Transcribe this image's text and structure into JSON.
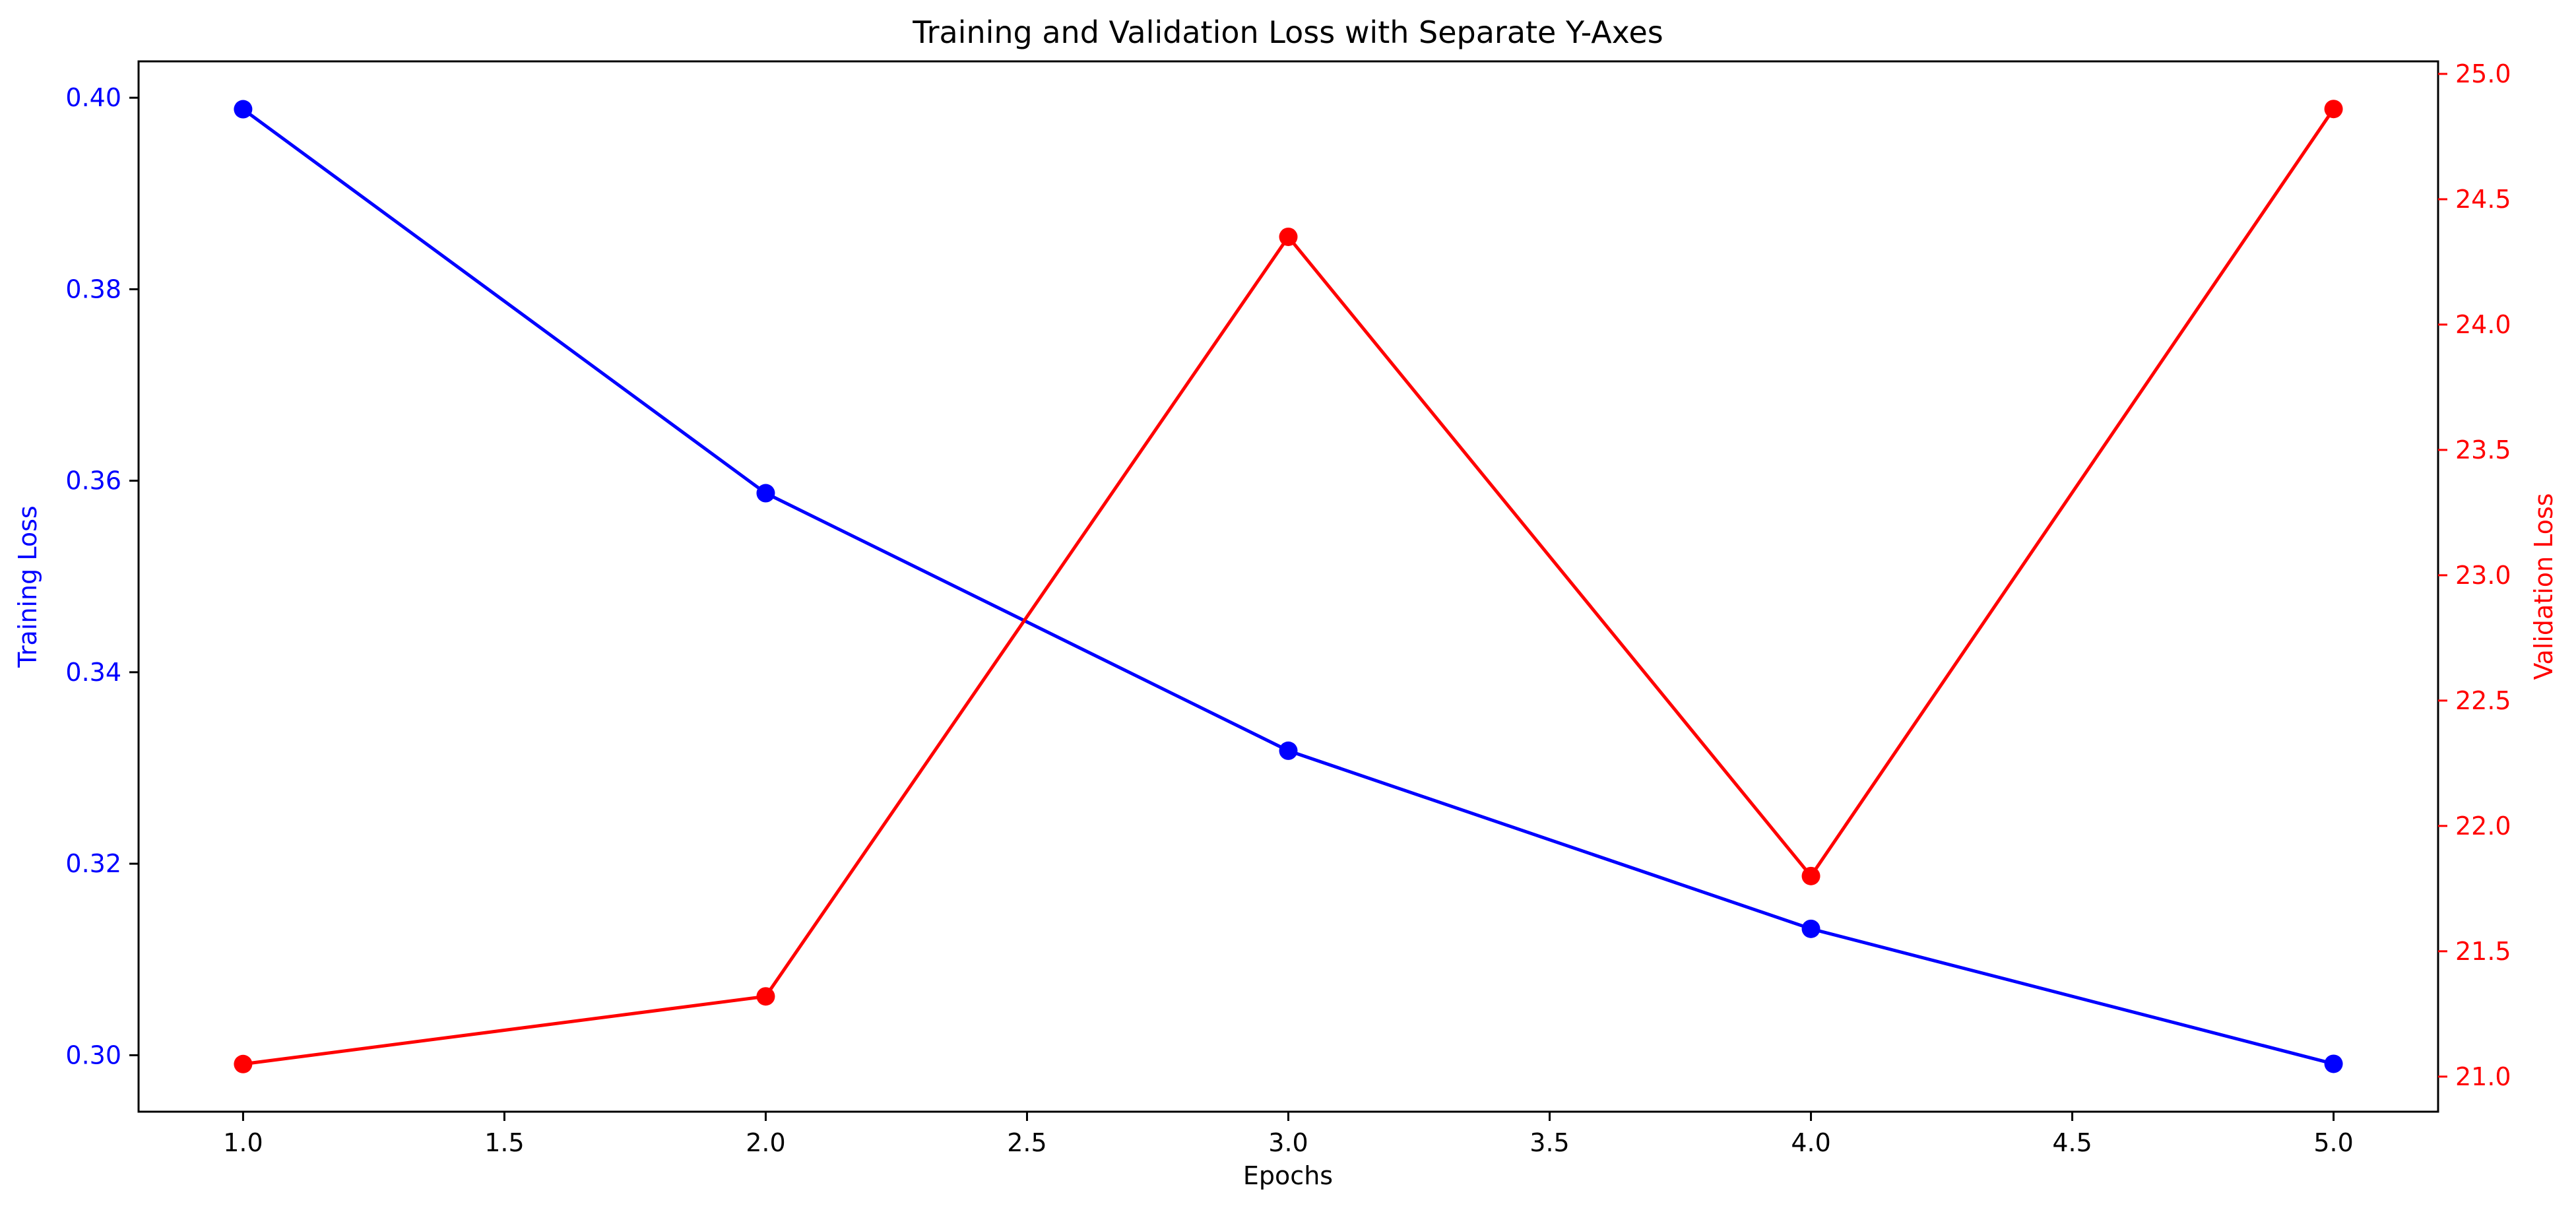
{
  "chart_data": {
    "type": "line",
    "title": "Training and Validation Loss with Separate Y-Axes",
    "xlabel": "Epochs",
    "x": [
      1,
      2,
      3,
      4,
      5
    ],
    "x_ticks": [
      "1.0",
      "1.5",
      "2.0",
      "2.5",
      "3.0",
      "3.5",
      "4.0",
      "4.5",
      "5.0"
    ],
    "xlim": [
      0.8,
      5.2
    ],
    "grid": false,
    "series": [
      {
        "name": "Training Loss",
        "axis": "left",
        "color": "#0000ff",
        "values": [
          0.3988,
          0.3587,
          0.3318,
          0.3132,
          0.2991
        ]
      },
      {
        "name": "Validation Loss",
        "axis": "right",
        "color": "#ff0000",
        "values": [
          21.05,
          21.32,
          24.35,
          21.8,
          24.86
        ]
      }
    ],
    "y_left": {
      "label": "Training Loss",
      "color": "#0000ff",
      "ticks": [
        "0.30",
        "0.32",
        "0.34",
        "0.36",
        "0.38",
        "0.40"
      ],
      "ylim": [
        0.2941,
        0.4038
      ]
    },
    "y_right": {
      "label": "Validation Loss",
      "color": "#ff0000",
      "ticks": [
        "21.0",
        "21.5",
        "22.0",
        "22.5",
        "23.0",
        "23.5",
        "24.0",
        "24.5",
        "25.0"
      ],
      "ylim": [
        20.86,
        25.05
      ]
    }
  }
}
